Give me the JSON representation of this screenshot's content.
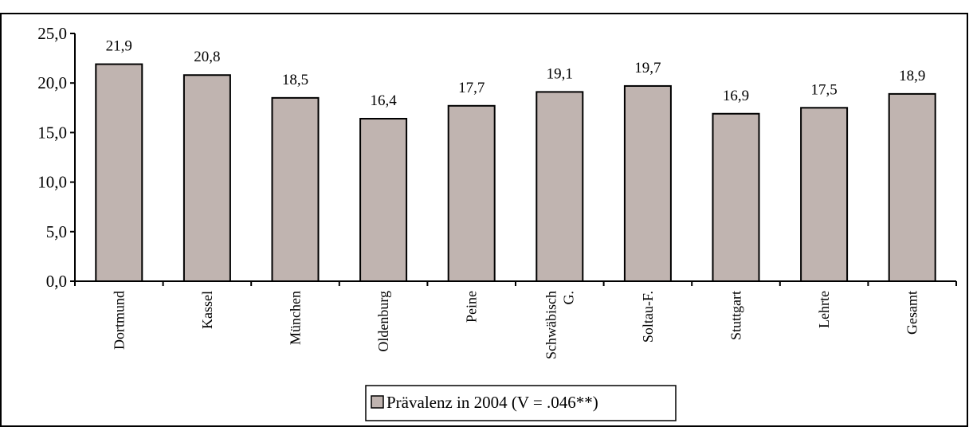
{
  "chart_data": {
    "type": "bar",
    "categories": [
      "Dortmund",
      "Kassel",
      "München",
      "Oldenburg",
      "Peine",
      "Schwäbisch G.",
      "Soltau-F.",
      "Stuttgart",
      "Lehrte",
      "Gesamt"
    ],
    "category_label_lines": [
      [
        "Dortmund"
      ],
      [
        "Kassel"
      ],
      [
        "München"
      ],
      [
        "Oldenburg"
      ],
      [
        "Peine"
      ],
      [
        "Schwäbisch",
        "G."
      ],
      [
        "Soltau-F."
      ],
      [
        "Stuttgart"
      ],
      [
        "Lehrte"
      ],
      [
        "Gesamt"
      ]
    ],
    "series": [
      {
        "name": "Prävalenz in 2004 (V = .046**)",
        "values": [
          21.9,
          20.8,
          18.5,
          16.4,
          17.7,
          19.1,
          19.7,
          16.9,
          17.5,
          18.9
        ],
        "labels": [
          "21,9",
          "20,8",
          "18,5",
          "16,4",
          "17,7",
          "19,1",
          "19,7",
          "16,9",
          "17,5",
          "18,9"
        ]
      }
    ],
    "ylim": [
      0,
      25
    ],
    "yticks": [
      0,
      5,
      10,
      15,
      20,
      25
    ],
    "ytick_labels": [
      "0,0",
      "5,0",
      "10,0",
      "15,0",
      "20,0",
      "25,0"
    ],
    "grid": false,
    "legend_position": "bottom",
    "bar_color": "#c0b4b0",
    "title": "",
    "xlabel": "",
    "ylabel": ""
  }
}
